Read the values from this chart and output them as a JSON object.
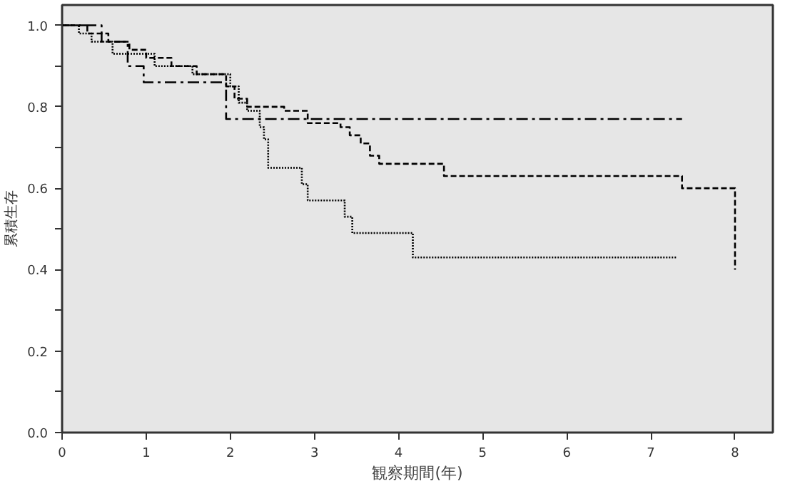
{
  "chart_data": {
    "type": "step",
    "xlabel": "観察期間(年)",
    "ylabel": "累積生存",
    "xlim": [
      0,
      8.45
    ],
    "ylim": [
      0,
      1.05
    ],
    "xticks": [
      0,
      1,
      2,
      3,
      4,
      5,
      6,
      7,
      8
    ],
    "yticks": [
      {
        "value": 0,
        "label": "0.0"
      },
      {
        "value": 0.1,
        "label": null
      },
      {
        "value": 0.2,
        "label": "0.2"
      },
      {
        "value": 0.3,
        "label": null
      },
      {
        "value": 0.4,
        "label": "0.4"
      },
      {
        "value": 0.5,
        "label": null
      },
      {
        "value": 0.6,
        "label": "0.6"
      },
      {
        "value": 0.7,
        "label": null
      },
      {
        "value": 0.8,
        "label": "0.8"
      },
      {
        "value": 0.9,
        "label": null
      },
      {
        "value": 1.0,
        "label": "1.0"
      }
    ],
    "grid": false,
    "series": [
      {
        "color": "#000000",
        "line_style": "dashdot",
        "x": [
          0,
          0.47,
          0.78,
          0.97,
          1.95,
          7.37
        ],
        "values": [
          1.0,
          0.96,
          0.9,
          0.86,
          0.77,
          0.77
        ]
      },
      {
        "color": "#000000",
        "line_style": "dashed",
        "x": [
          0,
          0.3,
          0.55,
          0.8,
          1.0,
          1.3,
          1.6,
          1.95,
          2.05,
          2.2,
          2.64,
          2.92,
          3.31,
          3.42,
          3.55,
          3.66,
          3.77,
          4.54,
          7.37,
          8.0
        ],
        "values": [
          1.0,
          0.98,
          0.96,
          0.94,
          0.92,
          0.9,
          0.88,
          0.85,
          0.82,
          0.8,
          0.79,
          0.76,
          0.75,
          0.73,
          0.71,
          0.68,
          0.66,
          0.63,
          0.6,
          0.4
        ]
      },
      {
        "color": "#000000",
        "line_style": "dotted",
        "x": [
          0,
          0.2,
          0.35,
          0.6,
          1.1,
          1.55,
          2.0,
          2.1,
          2.2,
          2.35,
          2.4,
          2.45,
          2.85,
          2.92,
          3.36,
          3.45,
          4.17,
          7.31
        ],
        "values": [
          1.0,
          0.98,
          0.96,
          0.93,
          0.9,
          0.88,
          0.85,
          0.81,
          0.79,
          0.75,
          0.72,
          0.65,
          0.61,
          0.57,
          0.53,
          0.49,
          0.43,
          0.43
        ]
      }
    ]
  }
}
